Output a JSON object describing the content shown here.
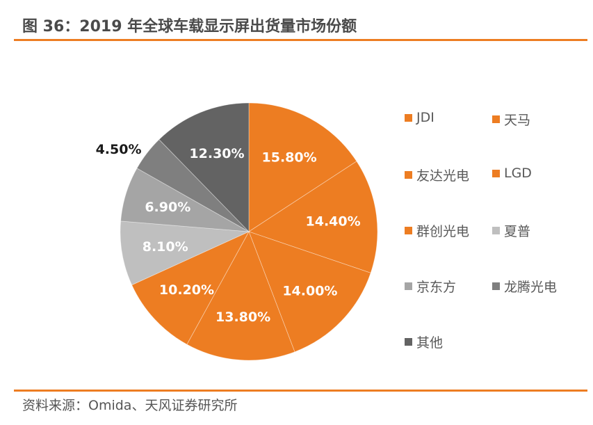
{
  "title": "图 36：2019 年全球车载显示屏出货量市场份额",
  "source": "资料来源：Omida、天风证券研究所",
  "colors": {
    "accent": "#ED7D22",
    "orange": "#ED7D22",
    "sharp": "#BFBFBF",
    "boe": "#A5A5A5",
    "longteng": "#7F7F7F",
    "other": "#636363",
    "label_white": "#FFFFFF",
    "label_dark": "#1A1A1A"
  },
  "chart_data": {
    "type": "pie",
    "title": "2019 年全球车载显示屏出货量市场份额",
    "start_angle": "12 o'clock",
    "direction": "clockwise",
    "legend_position": "right",
    "slices": [
      {
        "label": "JDI",
        "value": 15.8,
        "display": "15.80%",
        "color": "#ED7D22",
        "label_color": "#FFFFFF",
        "label_outside": false
      },
      {
        "label": "天马",
        "value": 14.4,
        "display": "14.40%",
        "color": "#ED7D22",
        "label_color": "#FFFFFF",
        "label_outside": false
      },
      {
        "label": "友达光电",
        "value": 14.0,
        "display": "14.00%",
        "color": "#ED7D22",
        "label_color": "#FFFFFF",
        "label_outside": false
      },
      {
        "label": "LGD",
        "value": 13.8,
        "display": "13.80%",
        "color": "#ED7D22",
        "label_color": "#FFFFFF",
        "label_outside": false
      },
      {
        "label": "群创光电",
        "value": 10.2,
        "display": "10.20%",
        "color": "#ED7D22",
        "label_color": "#FFFFFF",
        "label_outside": false
      },
      {
        "label": "夏普",
        "value": 8.1,
        "display": "8.10%",
        "color": "#BFBFBF",
        "label_color": "#FFFFFF",
        "label_outside": false
      },
      {
        "label": "京东方",
        "value": 6.9,
        "display": "6.90%",
        "color": "#A5A5A5",
        "label_color": "#FFFFFF",
        "label_outside": false
      },
      {
        "label": "龙腾光电",
        "value": 4.5,
        "display": "4.50%",
        "color": "#7F7F7F",
        "label_color": "#1A1A1A",
        "label_outside": true
      },
      {
        "label": "其他",
        "value": 12.3,
        "display": "12.30%",
        "color": "#636363",
        "label_color": "#FFFFFF",
        "label_outside": false
      }
    ],
    "legend": [
      "JDI",
      "天马",
      "友达光电",
      "LGD",
      "群创光电",
      "夏普",
      "京东方",
      "龙腾光电",
      "其他"
    ]
  }
}
